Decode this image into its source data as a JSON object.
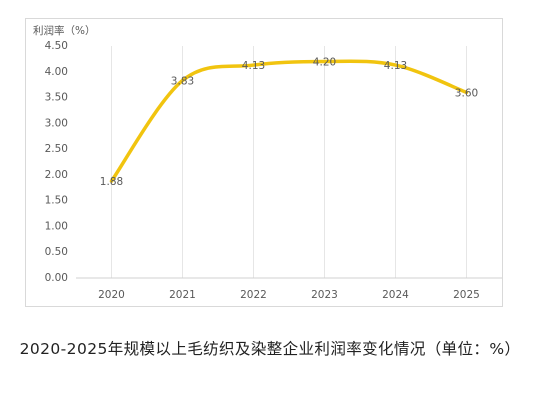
{
  "chart_data": {
    "type": "line",
    "y_label": "利润率（%）",
    "categories": [
      "2020",
      "2021",
      "2022",
      "2023",
      "2024",
      "2025"
    ],
    "values": [
      1.88,
      3.83,
      4.13,
      4.2,
      4.13,
      3.6
    ],
    "value_labels": [
      "1.88",
      "3.83",
      "4.13",
      "4.20",
      "4.13",
      "3.60"
    ],
    "color": "#f1c40f",
    "ylim": [
      0,
      4.5
    ],
    "yticks": [
      {
        "value": 0,
        "label": "0.00"
      },
      {
        "value": 0.5,
        "label": "0.50"
      },
      {
        "value": 1,
        "label": "1.00"
      },
      {
        "value": 1.5,
        "label": "1.50"
      },
      {
        "value": 2,
        "label": "2.00"
      },
      {
        "value": 2.5,
        "label": "2.50"
      },
      {
        "value": 3,
        "label": "3.00"
      },
      {
        "value": 3.5,
        "label": "3.50"
      },
      {
        "value": 4,
        "label": "4.00"
      },
      {
        "value": 4.5,
        "label": "4.50"
      }
    ],
    "caption": "2020-2025年规模以上毛纺织及染整企业利润率变化情况（单位：%）"
  }
}
